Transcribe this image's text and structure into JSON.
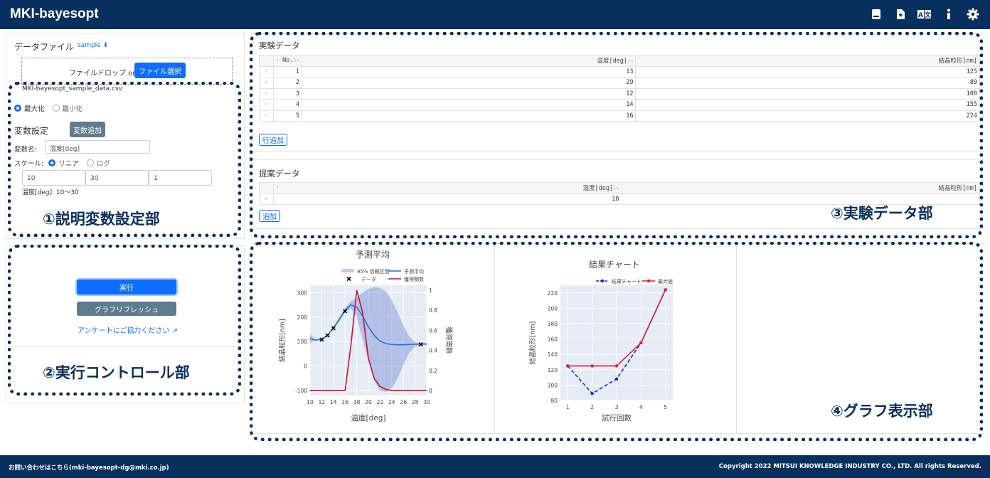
{
  "app": {
    "title": "MKI-bayesopt",
    "header_icons": [
      "book-icon",
      "file-icon",
      "translate-icon",
      "info-icon",
      "gear-icon"
    ]
  },
  "sidebar": {
    "data_file_label": "データファイル",
    "sample_link": "sample",
    "drop_text": "ファイルドロップ or",
    "file_select_button": "ファイル選択",
    "file_name": "MKI-bayesopt_sample_data.csv",
    "maximize_label": "最大化",
    "minimize_label": "最小化",
    "variable_settings_label": "変数設定",
    "add_variable_button": "変数追加",
    "variable_name_label": "変数名:",
    "variable_name_value": "温度[deg]",
    "scale_label": "スケール:",
    "scale_linear": "リニア",
    "scale_log": "ログ",
    "range_min": "10",
    "range_max": "30",
    "range_step": "1",
    "range_summary": "温度[deg]: 10〜30",
    "run_button": "実行",
    "refresh_button": "グラフリフレッシュ",
    "survey_link": "アンケートにご協力ください"
  },
  "callouts": {
    "c1": "①説明変数設定部",
    "c2": "②実行コントロール部",
    "c3": "③実験データ部",
    "c4": "④グラフ表示部"
  },
  "experiment": {
    "title": "実験データ",
    "columns": [
      "No.",
      "温度[deg]",
      "結晶粒形[nm]"
    ],
    "rows": [
      [
        "1",
        "13",
        "125"
      ],
      [
        "2",
        "29",
        "89"
      ],
      [
        "3",
        "12",
        "108"
      ],
      [
        "4",
        "14",
        "155"
      ],
      [
        "5",
        "16",
        "224"
      ]
    ],
    "add_row_button": "行追加"
  },
  "proposal": {
    "title": "提案データ",
    "columns": [
      "温度[deg]",
      "結晶粒形[nm]"
    ],
    "rows": [
      [
        "18",
        ""
      ]
    ],
    "add_button": "追加"
  },
  "chart_data": [
    {
      "type": "line",
      "title": "予測平均",
      "xlabel": "温度[deg]",
      "ylabel": "結晶粒形[nm]",
      "y2label": "獲得関数",
      "xlim": [
        10,
        30
      ],
      "ylim": [
        -120,
        330
      ],
      "y2lim": [
        -0.05,
        1.05
      ],
      "xticks": [
        10,
        12,
        14,
        16,
        18,
        20,
        22,
        24,
        26,
        28,
        30
      ],
      "yticks": [
        -100,
        0,
        100,
        200,
        300
      ],
      "y2ticks": [
        0,
        0.2,
        0.4,
        0.6,
        0.8,
        1
      ],
      "legend": [
        "95% 信頼区間",
        "予測平均",
        "データ",
        "獲得関数"
      ],
      "x": [
        10,
        11,
        12,
        13,
        14,
        15,
        16,
        17,
        18,
        19,
        20,
        21,
        22,
        23,
        24,
        25,
        26,
        27,
        28,
        29,
        30
      ],
      "mean": [
        112,
        106,
        110,
        126,
        155,
        190,
        228,
        250,
        240,
        205,
        160,
        125,
        102,
        92,
        88,
        87,
        87,
        88,
        89,
        90,
        90
      ],
      "ci_upper": [
        130,
        108,
        114,
        128,
        160,
        198,
        238,
        265,
        280,
        300,
        315,
        322,
        320,
        305,
        270,
        220,
        165,
        120,
        98,
        92,
        95
      ],
      "ci_lower": [
        95,
        104,
        106,
        124,
        150,
        182,
        218,
        235,
        200,
        110,
        20,
        -60,
        -100,
        -105,
        -90,
        -50,
        5,
        55,
        80,
        88,
        85
      ],
      "acquisition": [
        0,
        0,
        0,
        0,
        0,
        0,
        0,
        0.45,
        1.0,
        0.78,
        0.32,
        0.12,
        0.04,
        0.01,
        0,
        0,
        0,
        0,
        0,
        0,
        0
      ],
      "data_points": [
        {
          "x": 12,
          "y": 108
        },
        {
          "x": 13,
          "y": 125
        },
        {
          "x": 14,
          "y": 155
        },
        {
          "x": 16,
          "y": 224
        },
        {
          "x": 29,
          "y": 89
        }
      ]
    },
    {
      "type": "line",
      "title": "結果チャート",
      "xlabel": "試行回数",
      "ylabel": "結晶粒形[nm]",
      "xlim": [
        0.7,
        5.3
      ],
      "ylim": [
        80,
        230
      ],
      "xticks": [
        1,
        2,
        3,
        4,
        5
      ],
      "yticks": [
        80,
        100,
        120,
        140,
        160,
        180,
        200,
        220
      ],
      "series": [
        {
          "name": "結果チャート",
          "x": [
            1,
            2,
            3,
            4,
            5
          ],
          "values": [
            125,
            89,
            108,
            155,
            224
          ],
          "color": "#1f1fdd"
        },
        {
          "name": "最大値",
          "x": [
            1,
            2,
            3,
            4,
            5
          ],
          "values": [
            125,
            125,
            125,
            155,
            224
          ],
          "color": "#dd1e2e"
        }
      ]
    }
  ],
  "footer": {
    "contact": "お問い合わせはこちら(mki-bayesopt-dg@mki.co.jp)",
    "copyright": "Copyright 2022 MITSUI KNOWLEDGE INDUSTRY CO., LTD. All rights Reserved."
  }
}
